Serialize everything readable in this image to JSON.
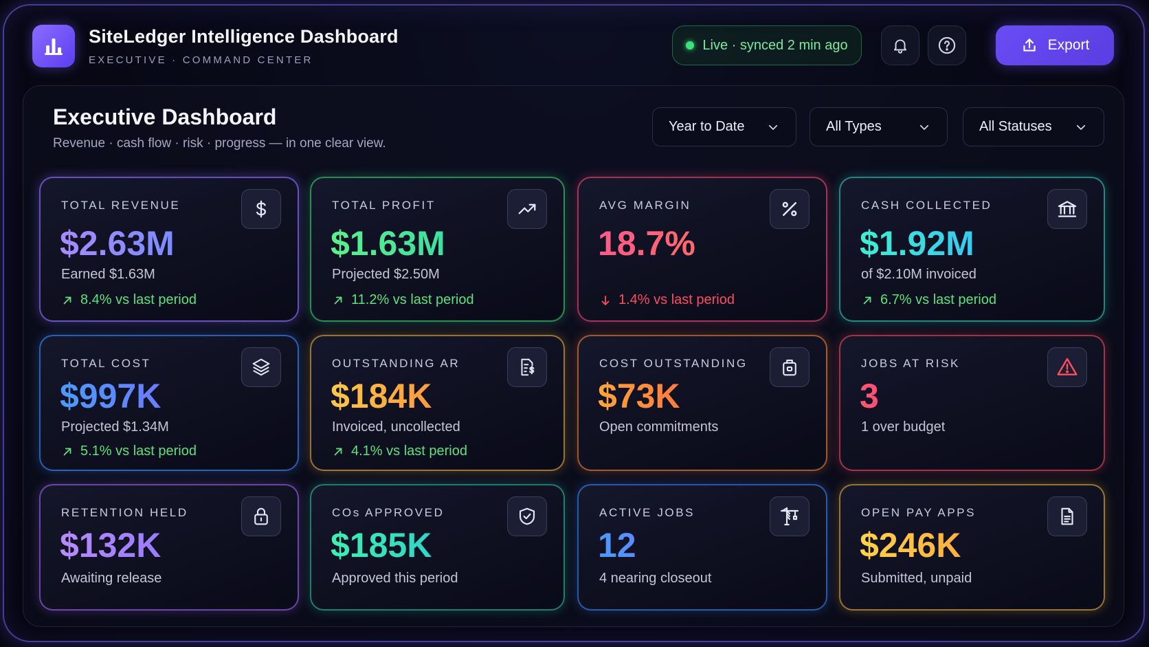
{
  "header": {
    "title": "SiteLedger Intelligence Dashboard",
    "subtitle": "EXECUTIVE · COMMAND CENTER",
    "live_status": "Live · synced 2 min ago",
    "export_label": "Export"
  },
  "dashboard": {
    "title": "Executive Dashboard",
    "subtitle": "Revenue · cash flow · risk · progress — in one clear view."
  },
  "filters": {
    "period": "Year to Date",
    "type": "All Types",
    "status": "All Statuses"
  },
  "cards": [
    {
      "label": "TOTAL REVENUE",
      "value": "$2.63M",
      "sub": "Earned $1.63M",
      "trend": "8.4% vs last period",
      "direction": "up",
      "icon": "dollar-icon",
      "accent": "#8a6cff"
    },
    {
      "label": "TOTAL PROFIT",
      "value": "$1.63M",
      "sub": "Projected $2.50M",
      "trend": "11.2% vs last period",
      "direction": "up",
      "icon": "trending-up-icon",
      "accent": "#3ee07a"
    },
    {
      "label": "AVG MARGIN",
      "value": "18.7%",
      "sub": "",
      "trend": "1.4% vs last period",
      "direction": "down",
      "icon": "percent-icon",
      "accent": "#ff4d7a"
    },
    {
      "label": "CASH COLLECTED",
      "value": "$1.92M",
      "sub": "of $2.10M invoiced",
      "trend": "6.7% vs last period",
      "direction": "up",
      "icon": "bank-icon",
      "accent": "#2fd6c8"
    },
    {
      "label": "TOTAL COST",
      "value": "$997K",
      "sub": "Projected $1.34M",
      "trend": "5.1% vs last period",
      "direction": "up",
      "icon": "layers-icon",
      "accent": "#3d8bff"
    },
    {
      "label": "OUTSTANDING AR",
      "value": "$184K",
      "sub": "Invoiced, uncollected",
      "trend": "4.1% vs last period",
      "direction": "up",
      "icon": "invoice-icon",
      "accent": "#f5b842"
    },
    {
      "label": "COST OUTSTANDING",
      "value": "$73K",
      "sub": "Open commitments",
      "trend": "",
      "direction": "",
      "icon": "briefcase-icon",
      "accent": "#ff8a3d"
    },
    {
      "label": "JOBS AT RISK",
      "value": "3",
      "sub": "1 over budget",
      "trend": "",
      "direction": "",
      "icon": "warning-icon",
      "accent": "#ff4d5e"
    },
    {
      "label": "RETENTION HELD",
      "value": "$132K",
      "sub": "Awaiting release",
      "trend": "",
      "direction": "",
      "icon": "lock-icon",
      "accent": "#a66cff"
    },
    {
      "label": "COs APPROVED",
      "value": "$185K",
      "sub": "Approved this period",
      "trend": "",
      "direction": "",
      "icon": "shield-check-icon",
      "accent": "#2fd6b0"
    },
    {
      "label": "ACTIVE JOBS",
      "value": "12",
      "sub": "4 nearing closeout",
      "trend": "",
      "direction": "",
      "icon": "crane-icon",
      "accent": "#3d8bff"
    },
    {
      "label": "OPEN PAY APPS",
      "value": "$246K",
      "sub": "Submitted, unpaid",
      "trend": "",
      "direction": "",
      "icon": "document-icon",
      "accent": "#f5b842"
    }
  ]
}
